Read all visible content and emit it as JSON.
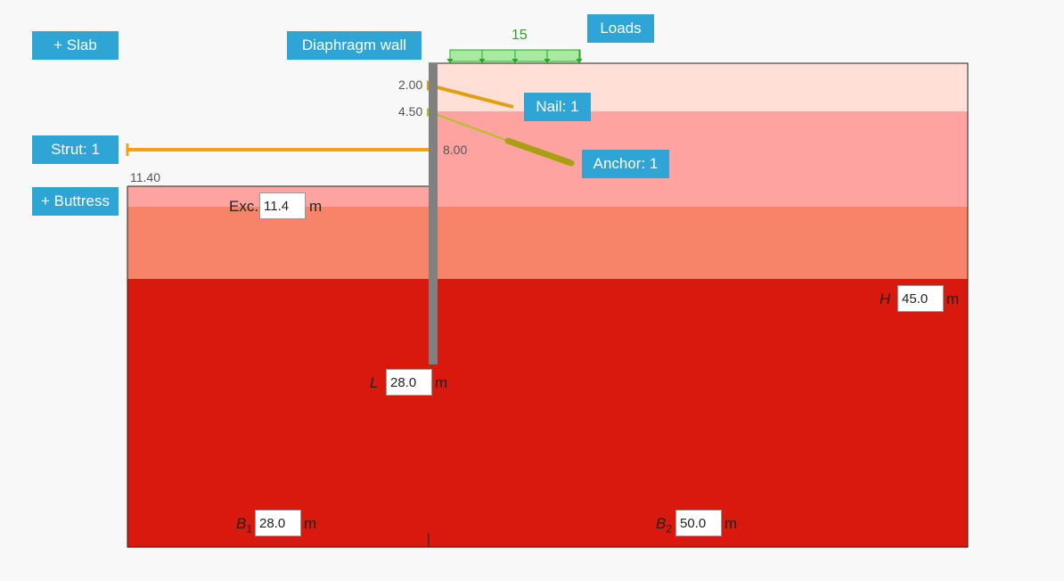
{
  "buttons": {
    "slab": "+ Slab",
    "buttress": "+ Buttress",
    "strut": "Strut: 1",
    "wall": "Diaphragm wall",
    "loads": "Loads",
    "nail": "Nail: 1",
    "anchor": "Anchor: 1"
  },
  "load_value": "15",
  "levels": {
    "nail": "2.00",
    "anchor": "4.50",
    "strut": "8.00",
    "excavation": "11.40"
  },
  "inputs": {
    "exc_label": "Exc.",
    "exc_value": "11.4",
    "L_label": "L",
    "L_value": "28.0",
    "H_label": "H",
    "H_value": "45.0",
    "B1_label": "B",
    "B1_sub": "1",
    "B1_value": "28.0",
    "B2_label": "B",
    "B2_sub": "2",
    "B2_value": "50.0",
    "unit": "m"
  },
  "colors": {
    "button": "#2fa5d6",
    "layer1": "#ffdfd6",
    "layer2": "#ffa3a0",
    "layer3": "#f78469",
    "layer4": "#d9190e",
    "wall": "#808080",
    "strut": "#f5a00f",
    "nail": "#e0a010",
    "anchor": "#a8a010",
    "load": "#90e890"
  }
}
